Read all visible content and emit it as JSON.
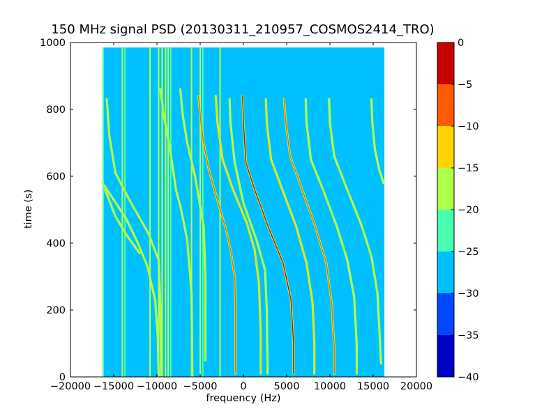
{
  "chart_data": {
    "type": "heatmap",
    "title": "150 MHz signal PSD (20130311_210957_COSMOS2414_TRO)",
    "xlabel": "frequency (Hz)",
    "ylabel": "time (s)",
    "xlim": [
      -20000,
      20000
    ],
    "ylim": [
      0,
      1000
    ],
    "xticks": [
      -20000,
      -15000,
      -10000,
      -5000,
      0,
      5000,
      10000,
      15000,
      20000
    ],
    "xtick_labels": [
      "−20000",
      "−15000",
      "−10000",
      "−5000",
      "0",
      "5000",
      "10000",
      "15000",
      "20000"
    ],
    "yticks": [
      0,
      200,
      400,
      600,
      800,
      1000
    ],
    "ytick_labels": [
      "0",
      "200",
      "400",
      "600",
      "800",
      "1000"
    ],
    "data_extent": {
      "x": [
        -16300,
        16300
      ],
      "y": [
        0,
        985
      ]
    },
    "background_level": -27.5,
    "colorbar": {
      "levels": [
        -40,
        -35,
        -30,
        -25,
        -20,
        -15,
        -10,
        -5,
        0
      ],
      "tick_labels": [
        "−40",
        "−35",
        "−30",
        "−25",
        "−20",
        "−15",
        "−10",
        "−5",
        "0"
      ],
      "colors": [
        "#0000c8",
        "#0048ff",
        "#00c0ff",
        "#48ffb0",
        "#b0ff48",
        "#ffd400",
        "#ff5a00",
        "#c80000"
      ]
    },
    "vertical_lines": [
      {
        "f": -16200,
        "t": [
          0,
          985
        ],
        "level": -22
      },
      {
        "f": -14000,
        "t": [
          0,
          985
        ],
        "level": -18
      },
      {
        "f": -13700,
        "t": [
          0,
          985
        ],
        "level": -22
      },
      {
        "f": -10800,
        "t": [
          0,
          985
        ],
        "level": -18
      },
      {
        "f": -9800,
        "t": [
          0,
          985
        ],
        "level": -18
      },
      {
        "f": -9400,
        "t": [
          0,
          985
        ],
        "level": -18
      },
      {
        "f": -9000,
        "t": [
          0,
          985
        ],
        "level": -18
      },
      {
        "f": -8700,
        "t": [
          0,
          985
        ],
        "level": -18
      },
      {
        "f": -8400,
        "t": [
          0,
          985
        ],
        "level": -22
      },
      {
        "f": -6000,
        "t": [
          0,
          985
        ],
        "level": -18
      },
      {
        "f": -5000,
        "t": [
          0,
          985
        ],
        "level": -18
      },
      {
        "f": -4700,
        "t": [
          0,
          985
        ],
        "level": -22
      },
      {
        "f": -2700,
        "t": [
          0,
          985
        ],
        "level": -18
      }
    ],
    "traces": [
      {
        "level": -22,
        "points": [
          [
            -15800,
            830
          ],
          [
            -15500,
            720
          ],
          [
            -14800,
            610
          ],
          [
            -13200,
            530
          ],
          [
            -11000,
            430
          ],
          [
            -9800,
            350
          ],
          [
            -9600,
            200
          ],
          [
            -9500,
            0
          ]
        ]
      },
      {
        "level": -22,
        "points": [
          [
            -16300,
            580
          ],
          [
            -15000,
            530
          ],
          [
            -13500,
            470
          ],
          [
            -12200,
            400
          ],
          [
            -11100,
            330
          ],
          [
            -10200,
            230
          ],
          [
            -9900,
            120
          ],
          [
            -9800,
            0
          ]
        ]
      },
      {
        "level": -22,
        "points": [
          [
            -16000,
            560
          ],
          [
            -14800,
            480
          ],
          [
            -13400,
            420
          ],
          [
            -12000,
            370
          ]
        ]
      },
      {
        "level": -22,
        "points": [
          [
            -9600,
            860
          ],
          [
            -9200,
            780
          ],
          [
            -8600,
            700
          ],
          [
            -7800,
            560
          ],
          [
            -7200,
            500
          ],
          [
            -6500,
            410
          ],
          [
            -6000,
            250
          ],
          [
            -5900,
            0
          ]
        ]
      },
      {
        "level": -22,
        "points": [
          [
            -7300,
            860
          ],
          [
            -7000,
            780
          ],
          [
            -6500,
            700
          ],
          [
            -5600,
            600
          ],
          [
            -4600,
            450
          ],
          [
            -4400,
            300
          ],
          [
            -4400,
            50
          ]
        ]
      },
      {
        "level": -10,
        "points": [
          [
            -5200,
            840
          ],
          [
            -4900,
            760
          ],
          [
            -4600,
            700
          ],
          [
            -4000,
            620
          ],
          [
            -2800,
            510
          ],
          [
            -2000,
            440
          ],
          [
            -1500,
            380
          ],
          [
            -1000,
            300
          ],
          [
            -900,
            200
          ],
          [
            -900,
            10
          ]
        ]
      },
      {
        "level": -15,
        "points": [
          [
            -3200,
            840
          ],
          [
            -3000,
            760
          ],
          [
            -2400,
            650
          ],
          [
            -1200,
            560
          ],
          [
            400,
            460
          ],
          [
            1300,
            380
          ],
          [
            1800,
            280
          ],
          [
            2000,
            130
          ],
          [
            2000,
            10
          ]
        ]
      },
      {
        "level": -22,
        "points": [
          [
            -1600,
            830
          ],
          [
            -1500,
            760
          ],
          [
            -1000,
            640
          ],
          [
            0,
            520
          ],
          [
            1500,
            410
          ],
          [
            2500,
            320
          ],
          [
            2700,
            200
          ],
          [
            2800,
            10
          ]
        ]
      },
      {
        "level": -5,
        "points": [
          [
            -100,
            840
          ],
          [
            0,
            760
          ],
          [
            300,
            640
          ],
          [
            1300,
            560
          ],
          [
            3000,
            440
          ],
          [
            4600,
            340
          ],
          [
            5500,
            230
          ],
          [
            5800,
            100
          ],
          [
            5800,
            10
          ]
        ]
      },
      {
        "level": -15,
        "points": [
          [
            2600,
            830
          ],
          [
            2700,
            760
          ],
          [
            3200,
            650
          ],
          [
            4500,
            560
          ],
          [
            6100,
            450
          ],
          [
            7300,
            340
          ],
          [
            8000,
            220
          ],
          [
            8200,
            100
          ],
          [
            8200,
            10
          ]
        ]
      },
      {
        "level": -10,
        "points": [
          [
            4700,
            830
          ],
          [
            4900,
            760
          ],
          [
            5400,
            660
          ],
          [
            6800,
            560
          ],
          [
            8300,
            450
          ],
          [
            9600,
            340
          ],
          [
            10200,
            220
          ],
          [
            10500,
            90
          ],
          [
            10500,
            10
          ]
        ]
      },
      {
        "level": -22,
        "points": [
          [
            7200,
            830
          ],
          [
            7300,
            760
          ],
          [
            7800,
            650
          ],
          [
            9200,
            560
          ],
          [
            10800,
            450
          ],
          [
            12000,
            350
          ],
          [
            12800,
            240
          ],
          [
            13100,
            100
          ],
          [
            13100,
            10
          ]
        ]
      },
      {
        "level": -22,
        "points": [
          [
            9900,
            830
          ],
          [
            10000,
            760
          ],
          [
            10500,
            660
          ],
          [
            12000,
            560
          ],
          [
            13700,
            450
          ],
          [
            14800,
            360
          ],
          [
            15500,
            250
          ],
          [
            15800,
            100
          ],
          [
            15900,
            40
          ]
        ]
      },
      {
        "level": -18,
        "points": [
          [
            14800,
            830
          ],
          [
            14900,
            760
          ],
          [
            15200,
            680
          ],
          [
            15700,
            620
          ],
          [
            16200,
            580
          ]
        ]
      }
    ]
  }
}
